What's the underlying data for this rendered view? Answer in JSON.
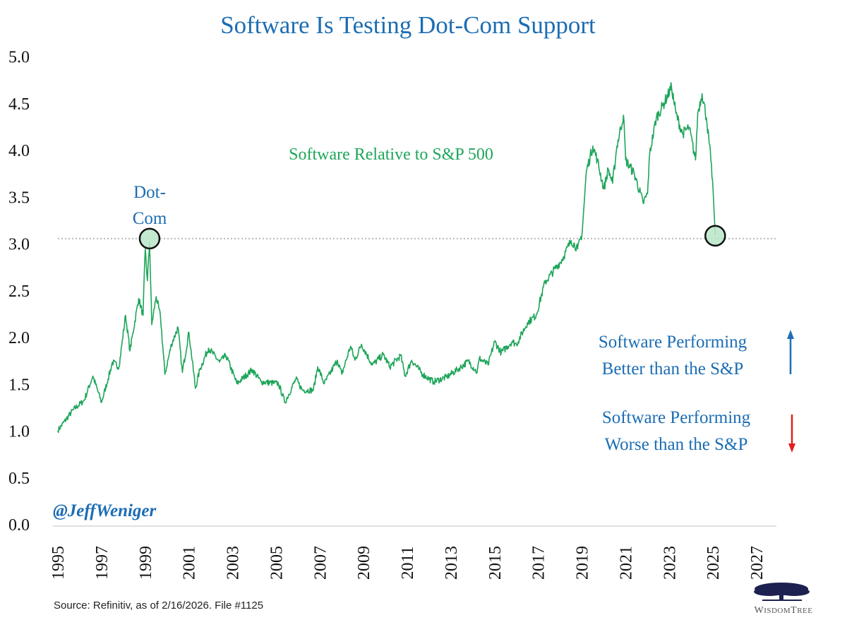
{
  "colors": {
    "title": "#1c6db3",
    "series": "#1ea55a",
    "annotation_blue": "#1c6db3",
    "arrow_up": "#1c6db3",
    "arrow_down": "#e0201b",
    "marker_fill": "#b9e6c8",
    "reference_line": "#b8b8b8"
  },
  "chart_data": {
    "type": "line",
    "title": "Software Is Testing Dot-Com Support",
    "xlabel": "",
    "ylabel": "",
    "xlim": [
      1995,
      2027
    ],
    "ylim": [
      0,
      5.0
    ],
    "x_ticks": [
      "1995",
      "1997",
      "1999",
      "2001",
      "2003",
      "2005",
      "2007",
      "2009",
      "2011",
      "2013",
      "2015",
      "2017",
      "2019",
      "2021",
      "2023",
      "2025",
      "2027"
    ],
    "y_ticks": [
      "0.0",
      "0.5",
      "1.0",
      "1.5",
      "2.0",
      "2.5",
      "3.0",
      "3.5",
      "4.0",
      "4.5",
      "5.0"
    ],
    "grid": false,
    "reference_line": {
      "y": 3.05,
      "style": "dotted"
    },
    "series": [
      {
        "name": "Software Relative to S&P 500",
        "x": [
          1995.0,
          1995.7,
          1996.2,
          1996.6,
          1997.0,
          1997.3,
          1997.5,
          1997.8,
          1998.1,
          1998.3,
          1998.7,
          1998.9,
          1999.0,
          1999.1,
          1999.2,
          1999.3,
          1999.5,
          1999.7,
          1999.9,
          2000.2,
          2000.5,
          2000.7,
          2001.0,
          2001.3,
          2001.5,
          2001.9,
          2002.4,
          2002.7,
          2003.2,
          2003.9,
          2004.3,
          2005.1,
          2005.4,
          2005.9,
          2006.2,
          2006.7,
          2006.9,
          2007.2,
          2007.8,
          2008.0,
          2008.4,
          2008.6,
          2008.9,
          2009.4,
          2009.9,
          2010.2,
          2010.7,
          2010.9,
          2011.2,
          2011.7,
          2012.2,
          2012.8,
          2013.3,
          2013.8,
          2014.2,
          2014.3,
          2014.7,
          2015.0,
          2015.3,
          2015.8,
          2016.0,
          2016.5,
          2016.9,
          2017.3,
          2018.1,
          2018.5,
          2018.8,
          2019.0,
          2019.1,
          2019.2,
          2019.5,
          2019.7,
          2020.0,
          2020.2,
          2020.4,
          2020.6,
          2020.9,
          2021.0,
          2021.4,
          2021.8,
          2022.0,
          2022.1,
          2022.4,
          2022.7,
          2023.1,
          2023.3,
          2023.6,
          2023.9,
          2024.2,
          2024.3,
          2024.5,
          2024.7,
          2024.9,
          2025.0,
          2025.1
        ],
        "y": [
          1.0,
          1.22,
          1.32,
          1.58,
          1.3,
          1.55,
          1.73,
          1.68,
          2.23,
          1.85,
          2.41,
          2.23,
          2.94,
          2.6,
          3.01,
          2.13,
          2.43,
          2.21,
          1.6,
          1.92,
          2.1,
          1.62,
          2.05,
          1.45,
          1.65,
          1.88,
          1.73,
          1.8,
          1.5,
          1.65,
          1.52,
          1.5,
          1.3,
          1.55,
          1.43,
          1.43,
          1.68,
          1.5,
          1.75,
          1.6,
          1.9,
          1.75,
          1.92,
          1.7,
          1.81,
          1.68,
          1.8,
          1.58,
          1.75,
          1.6,
          1.52,
          1.57,
          1.65,
          1.74,
          1.62,
          1.77,
          1.7,
          1.95,
          1.83,
          1.95,
          1.92,
          2.15,
          2.23,
          2.58,
          2.83,
          3.03,
          2.94,
          3.1,
          3.43,
          3.77,
          4.04,
          3.89,
          3.58,
          3.79,
          3.64,
          4.04,
          4.37,
          3.89,
          3.74,
          3.43,
          3.53,
          3.96,
          4.34,
          4.47,
          4.67,
          4.39,
          4.17,
          4.24,
          3.89,
          4.39,
          4.6,
          4.34,
          3.89,
          3.58,
          3.09
        ]
      }
    ],
    "highlight_points": [
      {
        "label": "Dot-Com",
        "x": 1999.2,
        "y": 3.05
      },
      {
        "label": "",
        "x": 2025.1,
        "y": 3.08
      }
    ],
    "annotations": {
      "series_label": "Software Relative to S&P 500",
      "dotcom_line1": "Dot-",
      "dotcom_line2": "Com",
      "better_line1": "Software Performing",
      "better_line2": "Better than the S&P",
      "worse_line1": "Software Performing",
      "worse_line2": "Worse than the S&P"
    }
  },
  "handle": "@JeffWeniger",
  "source": "Source: Refinitiv, as of 2/16/2026. File #1125",
  "logo": {
    "text": "WISDOMTREE",
    "icon": "tree-icon"
  }
}
